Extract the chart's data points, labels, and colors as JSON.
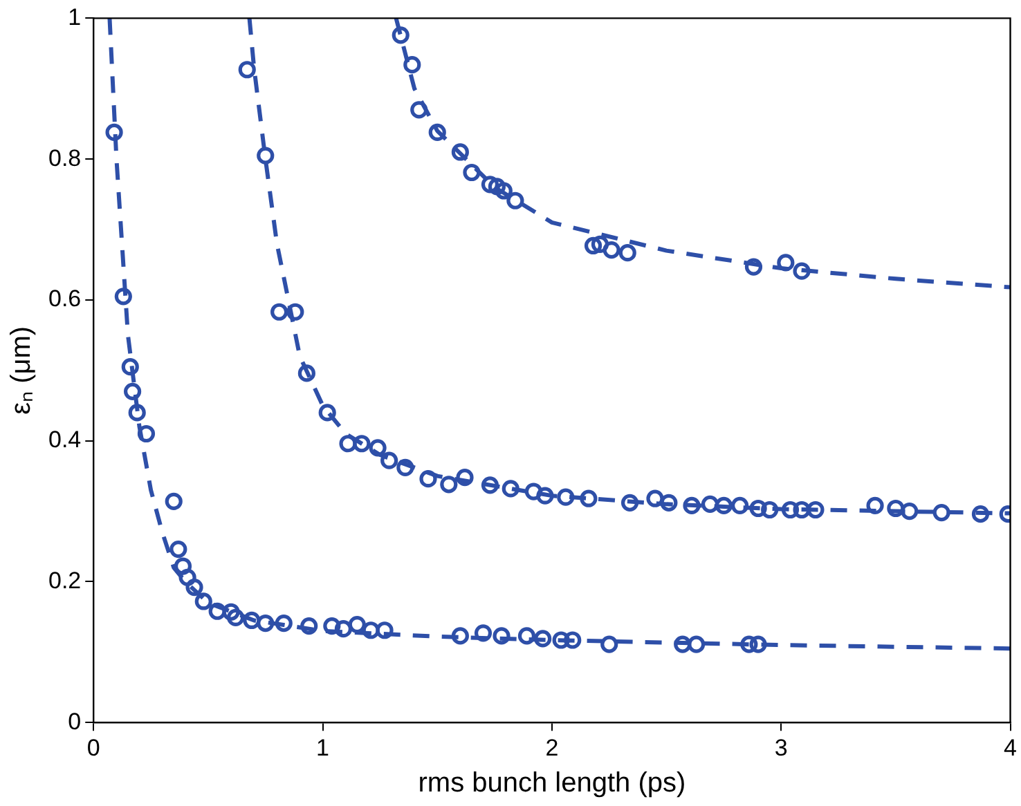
{
  "chart_data": {
    "type": "scatter",
    "xlabel": "rms bunch length (ps)",
    "ylabel": "εₙ (μm)",
    "xlim": [
      0,
      4
    ],
    "ylim": [
      0,
      1
    ],
    "xticks": [
      0,
      1,
      2,
      3,
      4
    ],
    "yticks": [
      0,
      0.2,
      0.4,
      0.6,
      0.8,
      1
    ],
    "grid": false,
    "legend": false,
    "series": [
      {
        "type": "scatter",
        "marker": "circle",
        "color": "#2e4fa8",
        "x": [
          0.09,
          0.13,
          0.16,
          0.17,
          0.19,
          0.23,
          0.35,
          0.37,
          0.39,
          0.41,
          0.44,
          0.48,
          0.54,
          0.6,
          0.62,
          0.69,
          0.75,
          0.83,
          0.94,
          1.04,
          1.09,
          1.15,
          1.21,
          1.27,
          1.6,
          1.7,
          1.78,
          1.89,
          1.96,
          2.04,
          2.09,
          2.25,
          2.57,
          2.63,
          2.86,
          2.9
        ],
        "values": [
          0.838,
          0.605,
          0.505,
          0.47,
          0.44,
          0.41,
          0.314,
          0.246,
          0.222,
          0.206,
          0.192,
          0.172,
          0.158,
          0.157,
          0.149,
          0.145,
          0.141,
          0.141,
          0.137,
          0.137,
          0.133,
          0.139,
          0.131,
          0.131,
          0.123,
          0.127,
          0.123,
          0.123,
          0.119,
          0.117,
          0.117,
          0.111,
          0.111,
          0.111,
          0.111,
          0.111
        ]
      },
      {
        "type": "scatter",
        "marker": "circle",
        "color": "#2e4fa8",
        "x": [
          0.67,
          0.75,
          0.81,
          0.88,
          0.93,
          1.02,
          1.11,
          1.17,
          1.24,
          1.29,
          1.36,
          1.46,
          1.55,
          1.62,
          1.73,
          1.82,
          1.92,
          1.97,
          2.06,
          2.16,
          2.34,
          2.45,
          2.51,
          2.61,
          2.69,
          2.75,
          2.82,
          2.9,
          2.95,
          3.04,
          3.09,
          3.15,
          3.41,
          3.5,
          3.56,
          3.7,
          3.87,
          3.99
        ],
        "values": [
          0.927,
          0.805,
          0.583,
          0.583,
          0.496,
          0.44,
          0.396,
          0.396,
          0.39,
          0.372,
          0.362,
          0.346,
          0.338,
          0.348,
          0.337,
          0.332,
          0.328,
          0.322,
          0.32,
          0.318,
          0.312,
          0.318,
          0.312,
          0.308,
          0.31,
          0.308,
          0.308,
          0.304,
          0.302,
          0.302,
          0.302,
          0.302,
          0.308,
          0.304,
          0.3,
          0.298,
          0.296,
          0.296
        ]
      },
      {
        "type": "scatter",
        "marker": "circle",
        "color": "#2e4fa8",
        "x": [
          1.34,
          1.39,
          1.42,
          1.5,
          1.6,
          1.65,
          1.73,
          1.76,
          1.79,
          1.84,
          2.18,
          2.21,
          2.26,
          2.33,
          2.88,
          3.02,
          3.09
        ],
        "values": [
          0.976,
          0.934,
          0.87,
          0.838,
          0.81,
          0.781,
          0.764,
          0.761,
          0.755,
          0.741,
          0.677,
          0.679,
          0.671,
          0.667,
          0.647,
          0.653,
          0.641
        ]
      },
      {
        "type": "line",
        "marker": "none",
        "line_style": "dashed",
        "color": "#2e4fa8",
        "x": [
          0.07,
          0.1,
          0.15,
          0.2,
          0.25,
          0.3,
          0.35,
          0.4,
          0.5,
          0.7,
          1,
          1.5,
          2,
          3,
          4
        ],
        "values": [
          1,
          0.8,
          0.55,
          0.42,
          0.33,
          0.27,
          0.22,
          0.2,
          0.17,
          0.145,
          0.13,
          0.122,
          0.117,
          0.11,
          0.105
        ]
      },
      {
        "type": "line",
        "marker": "none",
        "line_style": "dashed",
        "color": "#2e4fa8",
        "x": [
          0.68,
          0.7,
          0.75,
          0.8,
          0.85,
          0.9,
          1,
          1.1,
          1.25,
          1.5,
          2,
          2.5,
          3,
          3.5,
          4
        ],
        "values": [
          1,
          0.93,
          0.8,
          0.68,
          0.6,
          0.52,
          0.45,
          0.41,
          0.38,
          0.35,
          0.322,
          0.31,
          0.303,
          0.3,
          0.297
        ]
      },
      {
        "type": "line",
        "marker": "none",
        "line_style": "dashed",
        "color": "#2e4fa8",
        "x": [
          1.32,
          1.4,
          1.5,
          1.75,
          2,
          2.5,
          3,
          3.5,
          4
        ],
        "values": [
          1,
          0.9,
          0.84,
          0.76,
          0.71,
          0.67,
          0.645,
          0.63,
          0.618
        ]
      }
    ]
  }
}
